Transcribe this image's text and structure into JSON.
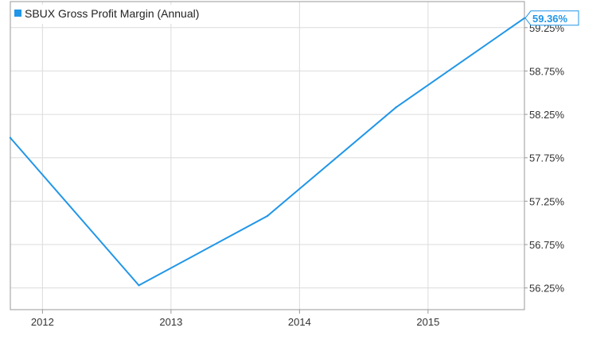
{
  "chart_data": {
    "type": "line",
    "title": "",
    "xlabel": "",
    "ylabel": "",
    "x": [
      2011.75,
      2012.75,
      2013.75,
      2014.75,
      2015.75
    ],
    "series": [
      {
        "name": "SBUX Gross Profit Margin (Annual)",
        "color": "#2196e8",
        "values": [
          57.98,
          56.28,
          57.08,
          58.33,
          59.36
        ]
      }
    ],
    "x_ticks": [
      2012,
      2013,
      2014,
      2015
    ],
    "x_tick_labels": [
      "2012",
      "2013",
      "2014",
      "2015"
    ],
    "y_ticks": [
      56.25,
      56.75,
      57.25,
      57.75,
      58.25,
      58.75,
      59.25
    ],
    "y_tick_labels": [
      "56.25%",
      "56.75%",
      "57.25%",
      "57.75%",
      "58.25%",
      "58.75%",
      "59.25%"
    ],
    "xlim": [
      2011.75,
      2015.75
    ],
    "ylim": [
      56.0,
      59.55
    ],
    "grid": true,
    "legend_position": "top-left",
    "last_value_label": "59.36%",
    "colors": {
      "line": "#2196e8",
      "grid": "#dcdcdc",
      "axis": "#9a9a9a",
      "background": "#ffffff"
    }
  }
}
